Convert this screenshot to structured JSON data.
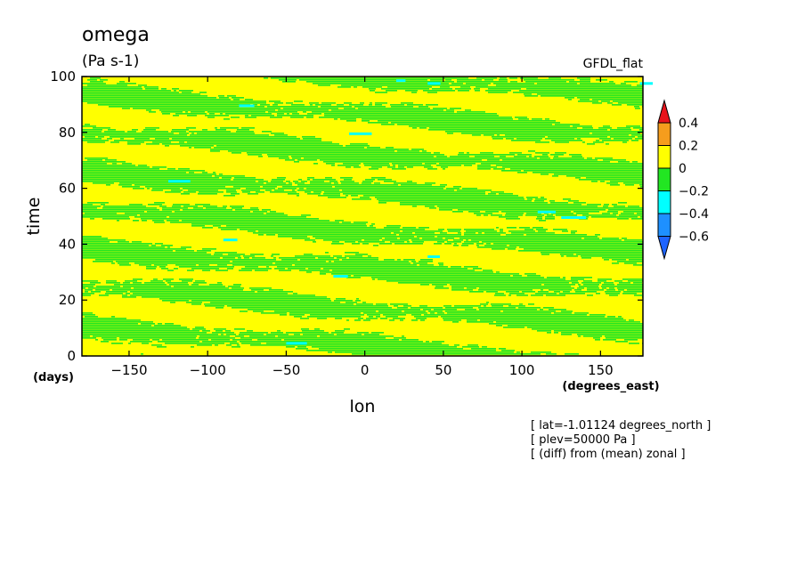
{
  "chart_data": {
    "type": "heatmap",
    "title": "omega",
    "units": "(Pa s-1)",
    "source_label": "GFDL_flat",
    "xlabel": "lon",
    "x_units": "(degrees_east)",
    "ylabel": "time",
    "y_units": "(days)",
    "xlim": [
      -180,
      177
    ],
    "ylim": [
      0,
      100
    ],
    "x_ticks": [
      -150,
      -100,
      -50,
      0,
      50,
      100,
      150
    ],
    "y_ticks": [
      0,
      20,
      40,
      60,
      80,
      100
    ],
    "colorbar": {
      "levels": [
        0.4,
        0.2,
        0,
        -0.2,
        -0.4,
        -0.6
      ],
      "bin_colors": [
        "#e8141c",
        "#f59d1d",
        "#ffff00",
        "#22e622",
        "#00ffff",
        "#1e90ff",
        "#1e64ff"
      ]
    },
    "dominant_ranges": [
      "0 to 0.2",
      "-0.2 to 0"
    ],
    "pattern": "eastward-drifting negative (green) bands tilted downward to the right; isolated cyan spots below -0.2",
    "annotations": [
      "[ lat=-1.01124 degrees_north ]",
      "[ plev=50000 Pa ]",
      "[ (diff) from (mean) zonal ]"
    ],
    "grid": false,
    "legend_position": "right"
  }
}
